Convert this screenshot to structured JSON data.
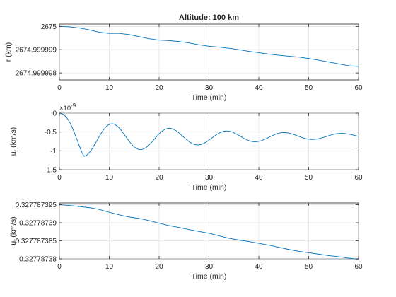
{
  "chart_data": [
    {
      "type": "line",
      "title": "Altitude: 100 km",
      "xlabel": "Time (min)",
      "ylabel": "r (km)",
      "ylabel_sub": "",
      "exponent_label": "",
      "xlim": [
        0,
        60
      ],
      "ylim": [
        2674.9999977,
        2675.0000001
      ],
      "xticks": [
        0,
        10,
        20,
        30,
        40,
        50,
        60
      ],
      "yticks": [
        2674.999998,
        2674.999999,
        2675
      ],
      "ytick_labels": [
        "2674.999998",
        "2674.999999",
        "2675"
      ],
      "grid": true,
      "color": "#0072bd",
      "series": [
        {
          "x": [
            0,
            2,
            4,
            6,
            8,
            10,
            12,
            14,
            16,
            18,
            20,
            22,
            24,
            26,
            28,
            30,
            32,
            34,
            36,
            38,
            40,
            42,
            44,
            46,
            48,
            50,
            52,
            54,
            56,
            58,
            60
          ],
          "values": [
            2675.0,
            2674.99999998,
            2674.99999993,
            2674.99999985,
            2674.99999975,
            2674.9999997,
            2674.9999997,
            2674.99999965,
            2674.99999956,
            2674.99999947,
            2674.99999941,
            2674.99999939,
            2674.99999935,
            2674.99999929,
            2674.99999921,
            2674.99999915,
            2674.99999911,
            2674.99999906,
            2674.999999,
            2674.99999893,
            2674.99999887,
            2674.99999881,
            2674.99999876,
            2674.99999872,
            2674.99999868,
            2674.99999862,
            2674.99999855,
            2674.99999847,
            2674.99999839,
            2674.99999831,
            2674.99999828
          ]
        }
      ]
    },
    {
      "type": "line",
      "title": "",
      "xlabel": "Time (min)",
      "ylabel": "u",
      "ylabel_sub": "r",
      "ylabel_suffix": " (km/s)",
      "exponent_label": "×10",
      "exponent_power": "-9",
      "xlim": [
        0,
        60
      ],
      "ylim": [
        -1.5,
        0
      ],
      "xticks": [
        0,
        10,
        20,
        30,
        40,
        50,
        60
      ],
      "yticks": [
        -1.5,
        -1,
        -0.5,
        0
      ],
      "ytick_labels": [
        "-1.5",
        "-1",
        "-0.5",
        "0"
      ],
      "grid": true,
      "color": "#0072bd",
      "series": [
        {
          "damped_oscillation": {
            "period_min": 11.5,
            "phase_min": 4.9,
            "mean_start": -0.68,
            "mean_end": -0.6,
            "amp_start": 0.57,
            "amp_end": 0.06,
            "initial_value": 0,
            "samples": 241
          }
        }
      ]
    },
    {
      "type": "line",
      "title": "",
      "xlabel": "Time (min)",
      "ylabel": "u",
      "ylabel_sub": "t",
      "ylabel_suffix": " (km/s)",
      "exponent_label": "",
      "xlim": [
        0,
        60
      ],
      "ylim": [
        0.32778738,
        0.3277873955
      ],
      "xticks": [
        0,
        10,
        20,
        30,
        40,
        50,
        60
      ],
      "yticks": [
        0.32778738,
        0.327787385,
        0.32778739,
        0.327787395
      ],
      "ytick_labels": [
        "0.32778738",
        "0.327787385",
        "0.32778739",
        "0.327787395"
      ],
      "grid": true,
      "color": "#0072bd",
      "series": [
        {
          "x": [
            0,
            2,
            4,
            6,
            8,
            10,
            12,
            14,
            16,
            18,
            20,
            22,
            24,
            26,
            28,
            30,
            32,
            34,
            36,
            38,
            40,
            42,
            44,
            46,
            48,
            50,
            52,
            54,
            56,
            58,
            60
          ],
          "values": [
            0.327787395,
            0.3277873948,
            0.3277873945,
            0.3277873942,
            0.3277873937,
            0.3277873929,
            0.3277873922,
            0.3277873916,
            0.3277873912,
            0.3277873906,
            0.3277873899,
            0.3277873892,
            0.3277873887,
            0.3277873881,
            0.3277873876,
            0.3277873871,
            0.3277873864,
            0.3277873857,
            0.3277873852,
            0.3277873848,
            0.3277873843,
            0.3277873838,
            0.3277873832,
            0.3277873826,
            0.3277873821,
            0.3277873817,
            0.3277873813,
            0.3277873809,
            0.3277873806,
            0.3277873802,
            0.3277873799
          ]
        }
      ]
    }
  ]
}
